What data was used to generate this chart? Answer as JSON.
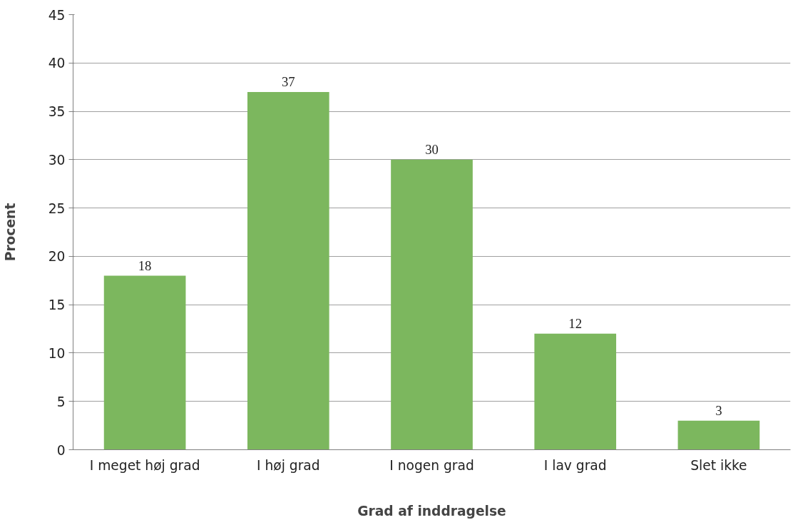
{
  "chart_data": {
    "type": "bar",
    "xlabel": "Grad af inddragelse",
    "ylabel": "Procent",
    "categories": [
      "I meget høj grad",
      "I høj grad",
      "I nogen grad",
      "I lav grad",
      "Slet ikke"
    ],
    "values": [
      18,
      37,
      30,
      12,
      3
    ],
    "color": "#7cb75e",
    "ylim": [
      0,
      45
    ],
    "yticks": [
      0,
      5,
      10,
      15,
      20,
      25,
      30,
      35,
      40,
      45
    ],
    "grid": "y",
    "data_labels": true
  }
}
